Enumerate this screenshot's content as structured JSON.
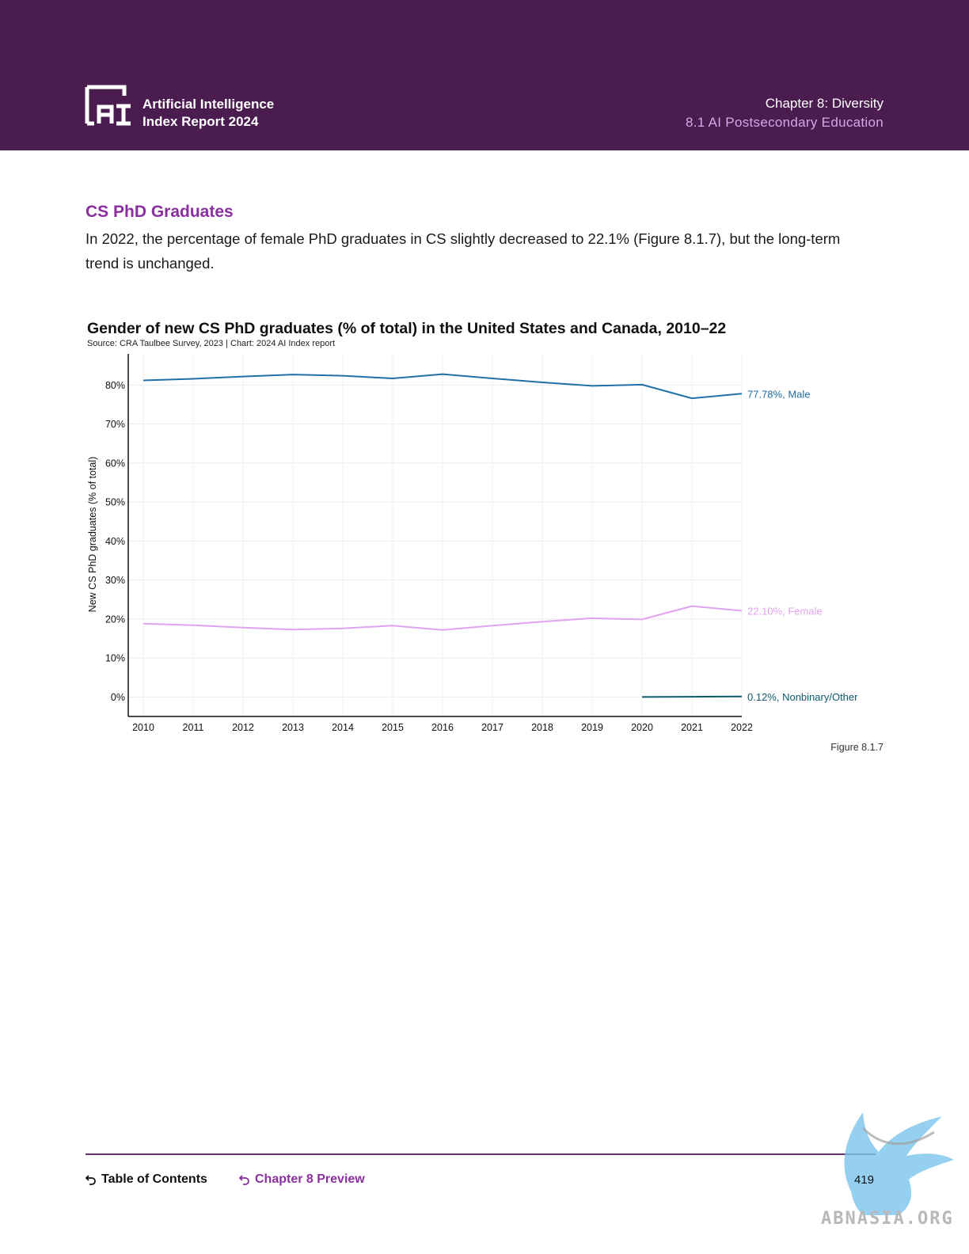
{
  "header": {
    "report_title_line1": "Artificial Intelligence",
    "report_title_line2": "Index Report 2024",
    "chapter": "Chapter 8: Diversity",
    "section": "8.1 AI Postsecondary Education",
    "logo_icon": "ai-index-logo-icon",
    "bg_color": "#4b1c4f"
  },
  "content": {
    "section_title": "CS PhD Graduates",
    "body_text": "In 2022, the percentage of female PhD graduates in CS slightly decreased to 22.1% (Figure 8.1.7), but the long-term trend is unchanged."
  },
  "chart_data": {
    "type": "line",
    "title": "Gender of new CS PhD graduates (% of total) in the United States and Canada, 2010–22",
    "source": "Source: CRA Taulbee Survey, 2023 | Chart: 2024 AI Index report",
    "ylabel": "New CS PhD graduates (% of total)",
    "xlabel": "",
    "ylim": [
      -5,
      88
    ],
    "yticks": [
      0,
      10,
      20,
      30,
      40,
      50,
      60,
      70,
      80
    ],
    "ytick_labels": [
      "0%",
      "10%",
      "20%",
      "30%",
      "40%",
      "50%",
      "60%",
      "70%",
      "80%"
    ],
    "x": [
      "2010",
      "2011",
      "2012",
      "2013",
      "2014",
      "2015",
      "2016",
      "2017",
      "2018",
      "2019",
      "2020",
      "2021",
      "2022"
    ],
    "grid": true,
    "legend": "end-of-line labels",
    "series": [
      {
        "name": "Male",
        "color": "#1f6fa8",
        "x": [
          "2010",
          "2011",
          "2012",
          "2013",
          "2014",
          "2015",
          "2016",
          "2017",
          "2018",
          "2019",
          "2020",
          "2021",
          "2022"
        ],
        "values": [
          81.2,
          81.6,
          82.2,
          82.7,
          82.4,
          81.7,
          82.8,
          81.7,
          80.7,
          79.8,
          80.1,
          76.6,
          77.78
        ],
        "end_label": "77.78%, Male"
      },
      {
        "name": "Female",
        "color": "#e2a3ef",
        "x": [
          "2010",
          "2011",
          "2012",
          "2013",
          "2014",
          "2015",
          "2016",
          "2017",
          "2018",
          "2019",
          "2020",
          "2021",
          "2022"
        ],
        "values": [
          18.8,
          18.4,
          17.8,
          17.3,
          17.6,
          18.3,
          17.2,
          18.3,
          19.3,
          20.2,
          19.9,
          23.3,
          22.1
        ],
        "end_label": "22.10%, Female"
      },
      {
        "name": "Nonbinary/Other",
        "color": "#0e5a6e",
        "x": [
          "2020",
          "2021",
          "2022"
        ],
        "values": [
          0.0,
          0.05,
          0.12
        ],
        "end_label": "0.12%, Nonbinary/Other"
      }
    ]
  },
  "figure_label": "Figure 8.1.7",
  "footer": {
    "toc_label": "Table of Contents",
    "prev_label": "Chapter 8 Preview",
    "back_icon": "return-arrow-icon",
    "page_number": "419",
    "accent": "#8a2f9e"
  },
  "watermark": {
    "text": "ABNASIA.ORG",
    "icon": "griffin-watermark-icon"
  }
}
